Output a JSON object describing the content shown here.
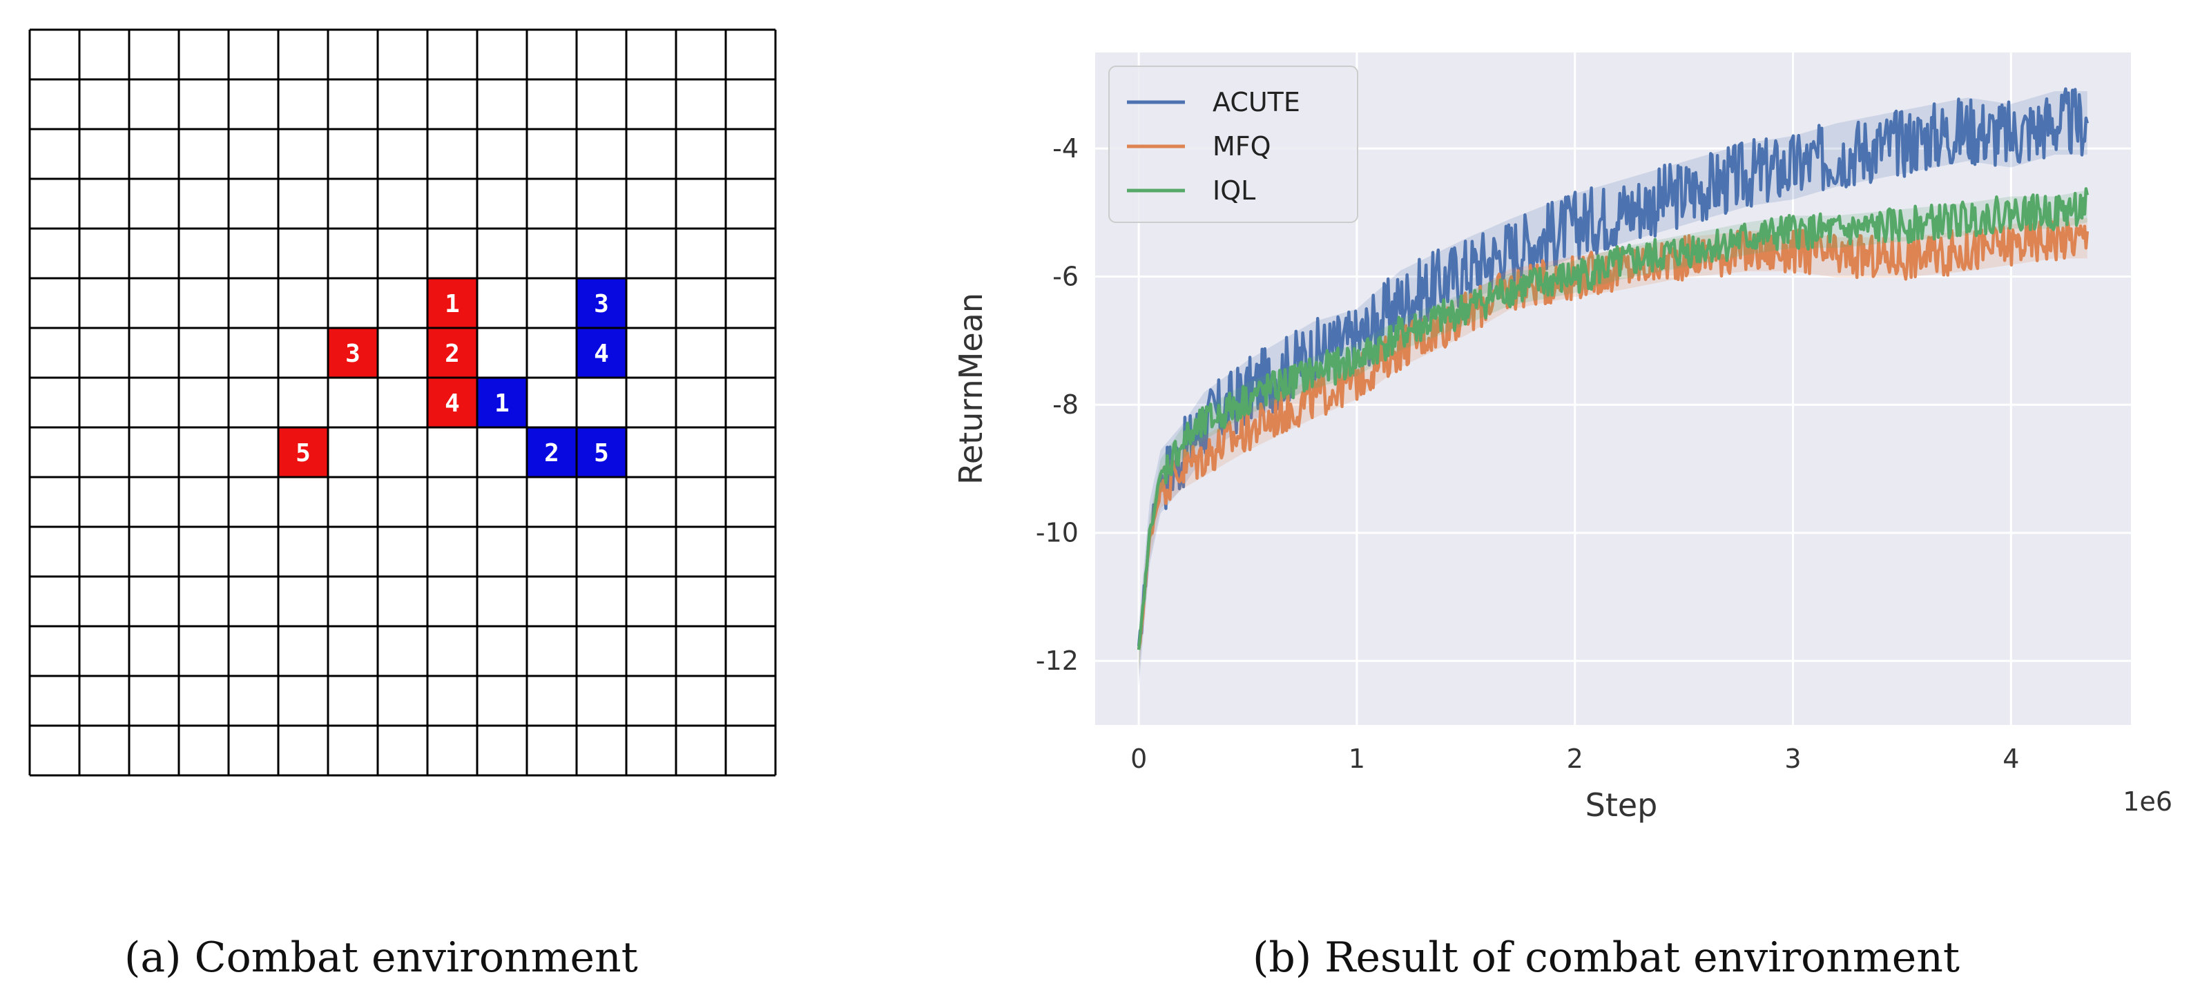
{
  "grid": {
    "rows": 15,
    "cols": 15,
    "red_color": "#ee1111",
    "blue_color": "#0808e0",
    "red_agents": [
      {
        "label": "1",
        "row": 5,
        "col": 8
      },
      {
        "label": "2",
        "row": 6,
        "col": 8
      },
      {
        "label": "3",
        "row": 6,
        "col": 6
      },
      {
        "label": "4",
        "row": 7,
        "col": 8
      },
      {
        "label": "5",
        "row": 8,
        "col": 5
      }
    ],
    "blue_agents": [
      {
        "label": "1",
        "row": 7,
        "col": 9
      },
      {
        "label": "2",
        "row": 8,
        "col": 10
      },
      {
        "label": "3",
        "row": 5,
        "col": 11
      },
      {
        "label": "4",
        "row": 6,
        "col": 11
      },
      {
        "label": "5",
        "row": 8,
        "col": 11
      }
    ]
  },
  "captions": {
    "a": "(a) Combat environment",
    "b": "(b) Result of combat environment"
  },
  "chart_data": {
    "type": "line",
    "title": "",
    "xlabel": "Step",
    "ylabel": "ReturnMean",
    "x_scale_label": "1e6",
    "xlim": [
      -0.2,
      4.55
    ],
    "ylim": [
      -13.0,
      -2.5
    ],
    "xticks": [
      0,
      1,
      2,
      3,
      4
    ],
    "yticks": [
      -12,
      -10,
      -8,
      -6,
      -4
    ],
    "legend": "top-left",
    "background": "#eaeaf2",
    "grid": true,
    "series": [
      {
        "name": "ACUTE",
        "color": "#4c72b0",
        "x": [
          0,
          0.05,
          0.1,
          0.2,
          0.3,
          0.5,
          0.8,
          1.0,
          1.2,
          1.5,
          1.7,
          2.0,
          2.2,
          2.5,
          2.8,
          3.0,
          3.2,
          3.5,
          3.8,
          4.0,
          4.2,
          4.35
        ],
        "y": [
          -11.9,
          -10.0,
          -9.2,
          -8.8,
          -8.3,
          -7.8,
          -7.2,
          -7.0,
          -6.4,
          -5.9,
          -5.6,
          -5.2,
          -5.0,
          -4.7,
          -4.4,
          -4.3,
          -4.1,
          -3.9,
          -3.7,
          -3.8,
          -3.6,
          -3.6
        ]
      },
      {
        "name": "MFQ",
        "color": "#dd8452",
        "x": [
          0,
          0.05,
          0.1,
          0.2,
          0.3,
          0.5,
          0.8,
          1.0,
          1.2,
          1.5,
          1.7,
          2.0,
          2.2,
          2.5,
          2.8,
          3.0,
          3.2,
          3.5,
          3.8,
          4.0,
          4.2,
          4.35
        ],
        "y": [
          -11.9,
          -10.1,
          -9.3,
          -9.0,
          -8.8,
          -8.4,
          -7.9,
          -7.6,
          -7.1,
          -6.6,
          -6.2,
          -6.0,
          -5.9,
          -5.7,
          -5.6,
          -5.6,
          -5.7,
          -5.7,
          -5.6,
          -5.5,
          -5.4,
          -5.4
        ]
      },
      {
        "name": "IQL",
        "color": "#55a868",
        "x": [
          0,
          0.05,
          0.1,
          0.2,
          0.3,
          0.5,
          0.8,
          1.0,
          1.2,
          1.5,
          1.7,
          2.0,
          2.2,
          2.5,
          2.8,
          3.0,
          3.2,
          3.5,
          3.8,
          4.0,
          4.2,
          4.35
        ],
        "y": [
          -11.9,
          -10.0,
          -9.1,
          -8.6,
          -8.3,
          -7.9,
          -7.5,
          -7.3,
          -6.9,
          -6.5,
          -6.2,
          -6.0,
          -5.8,
          -5.6,
          -5.4,
          -5.3,
          -5.3,
          -5.2,
          -5.1,
          -5.0,
          -5.0,
          -4.9
        ]
      }
    ]
  }
}
